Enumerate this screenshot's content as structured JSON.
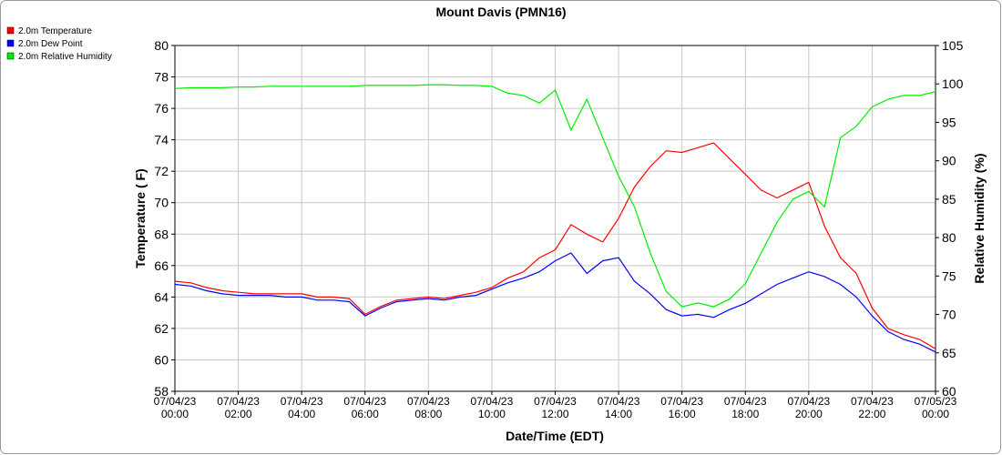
{
  "chart_data": {
    "type": "line",
    "title": "Mount Davis (PMN16)",
    "xlabel": "Date/Time (EDT)",
    "ylabel": "Temperature ( F)",
    "y2label": "Relative Humidity (%)",
    "x": [
      "07/04/23 00:00",
      "07/04/23 00:30",
      "07/04/23 01:00",
      "07/04/23 01:30",
      "07/04/23 02:00",
      "07/04/23 02:30",
      "07/04/23 03:00",
      "07/04/23 03:30",
      "07/04/23 04:00",
      "07/04/23 04:30",
      "07/04/23 05:00",
      "07/04/23 05:30",
      "07/04/23 06:00",
      "07/04/23 06:30",
      "07/04/23 07:00",
      "07/04/23 07:30",
      "07/04/23 08:00",
      "07/04/23 08:30",
      "07/04/23 09:00",
      "07/04/23 09:30",
      "07/04/23 10:00",
      "07/04/23 10:30",
      "07/04/23 11:00",
      "07/04/23 11:30",
      "07/04/23 12:00",
      "07/04/23 12:30",
      "07/04/23 13:00",
      "07/04/23 13:30",
      "07/04/23 14:00",
      "07/04/23 14:30",
      "07/04/23 15:00",
      "07/04/23 15:30",
      "07/04/23 16:00",
      "07/04/23 16:30",
      "07/04/23 17:00",
      "07/04/23 17:30",
      "07/04/23 18:00",
      "07/04/23 18:30",
      "07/04/23 19:00",
      "07/04/23 19:30",
      "07/04/23 20:00",
      "07/04/23 20:30",
      "07/04/23 21:00",
      "07/04/23 21:30",
      "07/04/23 22:00",
      "07/04/23 22:30",
      "07/04/23 23:00",
      "07/04/23 23:30",
      "07/05/23 00:00"
    ],
    "series": [
      {
        "name": "2.0m Temperature",
        "color": "#ff0000",
        "values": [
          65.0,
          64.9,
          64.6,
          64.4,
          64.3,
          64.2,
          64.2,
          64.2,
          64.2,
          64.0,
          64.0,
          63.9,
          62.9,
          63.4,
          63.8,
          63.9,
          64.0,
          63.9,
          64.1,
          64.3,
          64.6,
          65.2,
          65.6,
          66.5,
          67.0,
          68.6,
          68.0,
          67.5,
          69.0,
          71.0,
          72.3,
          73.3,
          73.2,
          73.5,
          73.8,
          72.8,
          71.8,
          70.8,
          70.3,
          70.8,
          71.3,
          68.5,
          66.5,
          65.5,
          63.3,
          62.0,
          61.6,
          61.3,
          60.7
        ]
      },
      {
        "name": "2.0m Dew Point",
        "color": "#0000ff",
        "values": [
          64.8,
          64.7,
          64.4,
          64.2,
          64.1,
          64.1,
          64.1,
          64.0,
          64.0,
          63.8,
          63.8,
          63.7,
          62.8,
          63.3,
          63.7,
          63.8,
          63.9,
          63.8,
          64.0,
          64.1,
          64.5,
          64.9,
          65.2,
          65.6,
          66.3,
          66.8,
          65.5,
          66.3,
          66.5,
          65.0,
          64.2,
          63.2,
          62.8,
          62.9,
          62.7,
          63.2,
          63.6,
          64.2,
          64.8,
          65.2,
          65.6,
          65.3,
          64.8,
          64.0,
          62.8,
          61.8,
          61.3,
          61.0,
          60.5
        ]
      },
      {
        "name": "2.0m Relative Humidity",
        "color": "#00ee00",
        "axis": "y2",
        "values": [
          99.4,
          99.5,
          99.5,
          99.5,
          99.6,
          99.6,
          99.7,
          99.7,
          99.7,
          99.7,
          99.7,
          99.7,
          99.8,
          99.8,
          99.8,
          99.8,
          99.9,
          99.9,
          99.8,
          99.8,
          99.7,
          98.8,
          98.5,
          97.5,
          99.2,
          94.0,
          98.0,
          93.0,
          88.0,
          84.0,
          78.0,
          73.0,
          71.0,
          71.5,
          71.0,
          72.0,
          74.0,
          78.0,
          82.0,
          85.0,
          86.0,
          84.0,
          93.0,
          94.5,
          97.0,
          98.0,
          98.5,
          98.5,
          99.0
        ]
      }
    ],
    "xlim": [
      "07/04/23 00:00",
      "07/05/23 00:00"
    ],
    "xticks": [
      "07/04/23 00:00",
      "07/04/23 02:00",
      "07/04/23 04:00",
      "07/04/23 06:00",
      "07/04/23 08:00",
      "07/04/23 10:00",
      "07/04/23 12:00",
      "07/04/23 14:00",
      "07/04/23 16:00",
      "07/04/23 18:00",
      "07/04/23 20:00",
      "07/04/23 22:00",
      "07/05/23 00:00"
    ],
    "ylim": [
      58,
      80
    ],
    "yticks": [
      58,
      60,
      62,
      64,
      66,
      68,
      70,
      72,
      74,
      76,
      78,
      80
    ],
    "y2lim": [
      60,
      105
    ],
    "y2ticks": [
      60,
      65,
      70,
      75,
      80,
      85,
      90,
      95,
      100,
      105
    ],
    "grid": true,
    "legend": "top-left"
  }
}
